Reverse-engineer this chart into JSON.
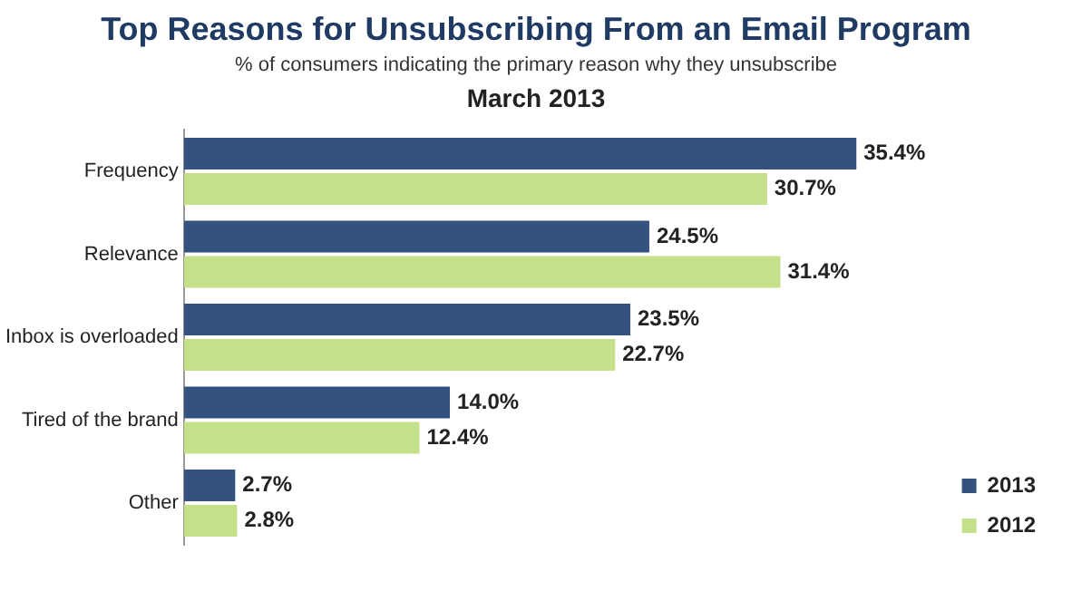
{
  "chart_data": {
    "type": "bar",
    "orientation": "horizontal",
    "title": "Top Reasons for Unsubscribing From an Email Program",
    "subtitle": "% of consumers indicating the primary reason why they unsubscribe",
    "annotations": [
      "March 2013"
    ],
    "categories": [
      "Frequency",
      "Relevance",
      "Inbox is overloaded",
      "Tired of the brand",
      "Other"
    ],
    "series": [
      {
        "name": "2013",
        "color": "#34527f",
        "values": [
          35.4,
          24.5,
          23.5,
          14.0,
          2.7
        ],
        "value_labels": [
          "35.4%",
          "24.5%",
          "23.5%",
          "14.0%",
          "2.7%"
        ]
      },
      {
        "name": "2012",
        "color": "#c4e08a",
        "values": [
          30.7,
          31.4,
          22.7,
          12.4,
          2.8
        ],
        "value_labels": [
          "30.7%",
          "31.4%",
          "22.7%",
          "12.4%",
          "2.8%"
        ]
      }
    ],
    "legend": "bottom right",
    "grid": false
  }
}
